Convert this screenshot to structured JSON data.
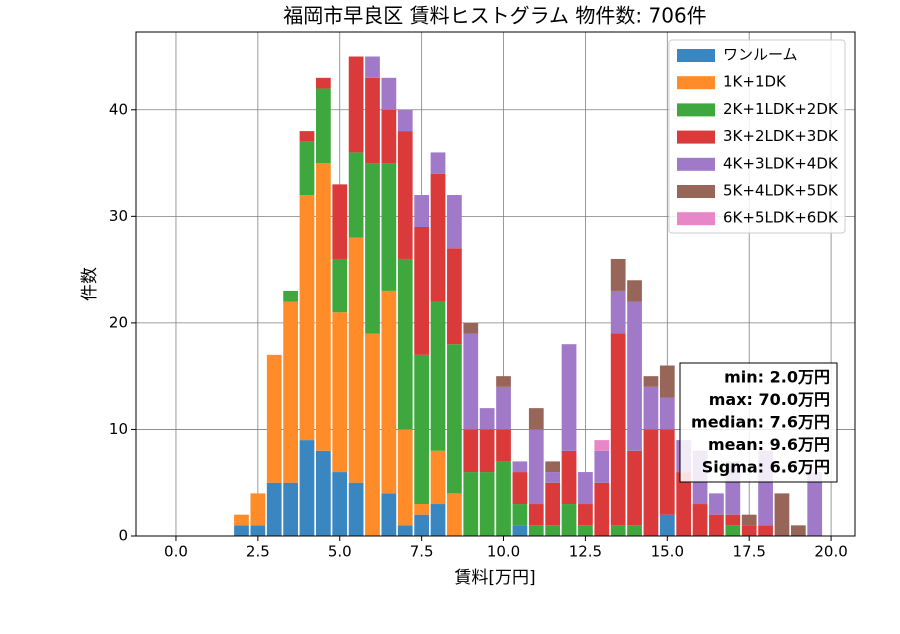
{
  "chart_data": {
    "type": "histogram",
    "title": "福岡市早良区 賃料ヒストグラム 物件数: 706件",
    "x_label": "賃料[万円]",
    "y_label": "件数",
    "bins": [
      1.75,
      2.25,
      2.75,
      3.25,
      3.75,
      4.25,
      4.75,
      5.25,
      5.75,
      6.25,
      6.75,
      7.25,
      7.75,
      8.25,
      8.75,
      9.25,
      9.75,
      10.25,
      10.75,
      11.25,
      11.75,
      12.25,
      12.75,
      13.25,
      13.75,
      14.25,
      14.75,
      15.25,
      15.75,
      16.25,
      16.75,
      17.25,
      17.75,
      18.25,
      18.75,
      19.25,
      19.75
    ],
    "series": [
      {
        "name": "ワンルーム",
        "color": "#3a86c0",
        "values": [
          1,
          1,
          5,
          5,
          9,
          8,
          6,
          5,
          0,
          4,
          1,
          2,
          3,
          0,
          0,
          0,
          0,
          1,
          0,
          0,
          0,
          0,
          0,
          0,
          0,
          0,
          2,
          0,
          0,
          0,
          0,
          0,
          0,
          0,
          0,
          0
        ]
      },
      {
        "name": "1K+1DK",
        "color": "#ff8c28",
        "values": [
          1,
          3,
          12,
          17,
          23,
          27,
          15,
          23,
          19,
          19,
          9,
          1,
          5,
          4,
          0,
          0,
          0,
          0,
          0,
          0,
          0,
          0,
          0,
          0,
          0,
          0,
          0,
          0,
          0,
          0,
          0,
          0,
          0,
          0,
          0,
          0
        ]
      },
      {
        "name": "2K+1LDK+2DK",
        "color": "#3ea83e",
        "values": [
          0,
          0,
          0,
          1,
          5,
          7,
          5,
          8,
          16,
          12,
          16,
          14,
          14,
          14,
          6,
          6,
          7,
          2,
          1,
          1,
          3,
          1,
          0,
          1,
          1,
          0,
          0,
          0,
          0,
          0,
          1,
          0,
          0,
          0,
          0,
          0
        ]
      },
      {
        "name": "3K+2LDK+3DK",
        "color": "#db3a3b",
        "values": [
          0,
          0,
          0,
          0,
          1,
          1,
          7,
          9,
          8,
          5,
          12,
          12,
          12,
          9,
          4,
          4,
          3,
          3,
          2,
          4,
          5,
          2,
          5,
          18,
          7,
          10,
          8,
          6,
          3,
          2,
          1,
          1,
          1,
          0,
          0,
          0
        ]
      },
      {
        "name": "4K+3LDK+4DK",
        "color": "#a07ac8",
        "values": [
          0,
          0,
          0,
          0,
          0,
          0,
          0,
          0,
          2,
          3,
          2,
          3,
          2,
          5,
          9,
          2,
          4,
          1,
          7,
          1,
          10,
          3,
          3,
          4,
          14,
          4,
          3,
          3,
          5,
          2,
          5,
          0,
          7,
          0,
          0,
          6
        ]
      },
      {
        "name": "5K+4LDK+5DK",
        "color": "#986559",
        "values": [
          0,
          0,
          0,
          0,
          0,
          0,
          0,
          0,
          0,
          0,
          0,
          0,
          0,
          0,
          1,
          0,
          1,
          0,
          2,
          1,
          0,
          0,
          0,
          3,
          2,
          1,
          3,
          0,
          0,
          0,
          0,
          1,
          0,
          4,
          1,
          0
        ]
      },
      {
        "name": "6K+5LDK+6DK",
        "color": "#e887c8",
        "values": [
          0,
          0,
          0,
          0,
          0,
          0,
          0,
          0,
          0,
          0,
          0,
          0,
          0,
          0,
          0,
          0,
          0,
          0,
          0,
          0,
          0,
          0,
          1,
          0,
          0,
          0,
          0,
          0,
          0,
          0,
          0,
          0,
          0,
          0,
          0,
          0
        ]
      }
    ],
    "xlim": [
      -1.22,
      20.73
    ],
    "ylim": [
      0,
      47.3
    ],
    "xticks": [
      {
        "value": 0,
        "label": "0.0"
      },
      {
        "value": 2.5,
        "label": "2.5"
      },
      {
        "value": 5,
        "label": "5.0"
      },
      {
        "value": 7.5,
        "label": "7.5"
      },
      {
        "value": 10,
        "label": "10.0"
      },
      {
        "value": 12.5,
        "label": "12.5"
      },
      {
        "value": 15,
        "label": "15.0"
      },
      {
        "value": 17.5,
        "label": "17.5"
      },
      {
        "value": 20,
        "label": "20.0"
      }
    ],
    "yticks": [
      0,
      10,
      20,
      30,
      40
    ],
    "grid": true,
    "stacked": true,
    "legend": "upper right",
    "annotation": [
      "min: 2.0万円",
      "max: 70.0万円",
      "median: 7.6万円",
      "mean: 9.6万円",
      "Sigma: 6.6万円"
    ]
  }
}
